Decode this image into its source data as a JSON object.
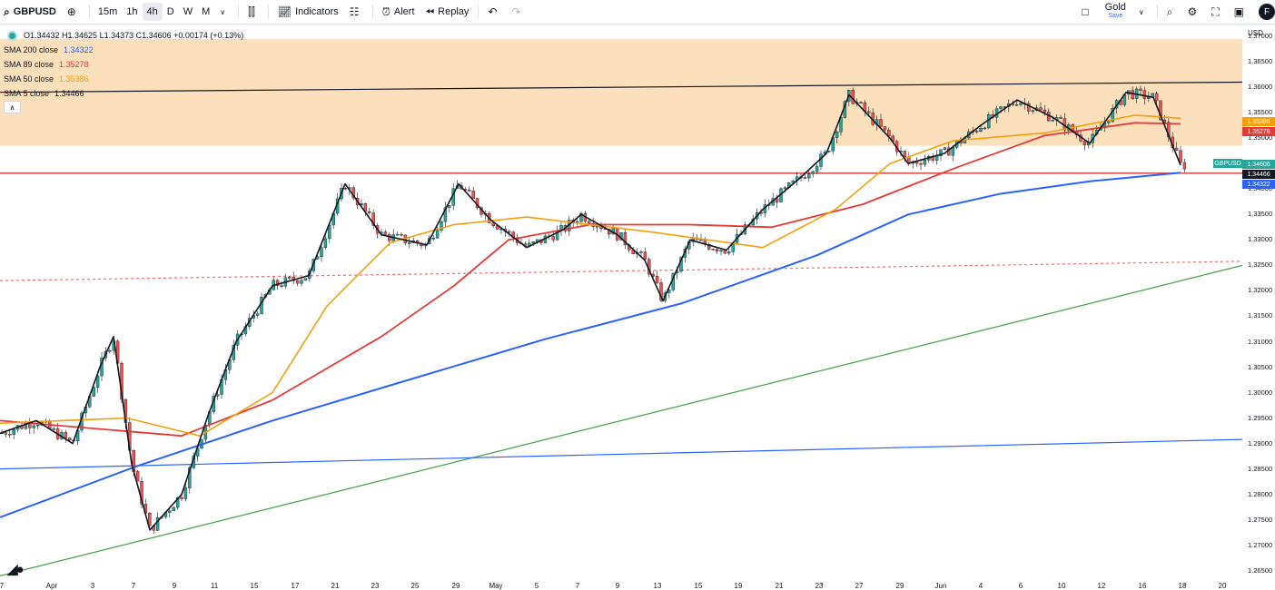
{
  "toolbar": {
    "symbol": "GBPUSD",
    "timeframes": [
      "15m",
      "1h",
      "4h",
      "D",
      "W",
      "M"
    ],
    "active_timeframe": "4h",
    "indicators_label": "Indicators",
    "alert_label": "Alert",
    "replay_label": "Replay",
    "layout_name": "Gold",
    "layout_status": "Save",
    "avatar_letter": "F"
  },
  "legend": {
    "ohlc": "O1.34432  H1.34625  L1.34373  C1.34606  +0.00174 (+0.13%)",
    "sma": [
      {
        "label": "SMA 200 close",
        "value": "1.34322",
        "color": "#2962ff"
      },
      {
        "label": "SMA 89 close",
        "value": "1.35278",
        "color": "#e53935"
      },
      {
        "label": "SMA 50 close",
        "value": "1.35386",
        "color": "#f59e0b"
      },
      {
        "label": "SMA 5 close",
        "value": "1.34466",
        "color": "#131722"
      }
    ]
  },
  "price_scale": {
    "currency": "USD",
    "ticks": [
      "1.37000",
      "1.36500",
      "1.36000",
      "1.35500",
      "1.35000",
      "1.34500",
      "1.34000",
      "1.33500",
      "1.33000",
      "1.32500",
      "1.32000",
      "1.31500",
      "1.31000",
      "1.30500",
      "1.30000",
      "1.29500",
      "1.29000",
      "1.28500",
      "1.28000",
      "1.27500",
      "1.27000",
      "1.26500"
    ],
    "labels": [
      {
        "text": "1.35386",
        "color": "#f59e0b"
      },
      {
        "text": "1.35278",
        "color": "#e53935"
      },
      {
        "text": "GBPUSD",
        "color": "#26a69a"
      },
      {
        "text": "1.34606",
        "color": "#26a69a"
      },
      {
        "text": "1.34466",
        "color": "#131722"
      },
      {
        "text": "1.34322",
        "color": "#2962ff"
      }
    ]
  },
  "time_axis": [
    "7",
    "Apr",
    "3",
    "7",
    "9",
    "11",
    "15",
    "17",
    "21",
    "23",
    "25",
    "29",
    "May",
    "5",
    "7",
    "9",
    "13",
    "15",
    "19",
    "21",
    "23",
    "27",
    "29",
    "Jun",
    "4",
    "6",
    "10",
    "12",
    "16",
    "18",
    "20"
  ],
  "chart_data": {
    "type": "candlestick",
    "symbol": "GBPUSD",
    "timeframe": "4h",
    "ylim": [
      1.263,
      1.3725
    ],
    "x_range_labels": [
      "Apr",
      "May",
      "Jun"
    ],
    "colors": {
      "up": "#26a69a",
      "down": "#ef5350",
      "sma200": "#2962ff",
      "sma89": "#e53935",
      "sma50": "#f59e0b",
      "sma5": "#131722",
      "zone": "#fbd5a6"
    },
    "sma200": [
      [
        0,
        1.2755
      ],
      [
        150,
        1.2855
      ],
      [
        300,
        1.2945
      ],
      [
        450,
        1.3025
      ],
      [
        600,
        1.3105
      ],
      [
        750,
        1.3175
      ],
      [
        900,
        1.327
      ],
      [
        1000,
        1.335
      ],
      [
        1100,
        1.339
      ],
      [
        1200,
        1.3415
      ],
      [
        1300,
        1.3432
      ]
    ],
    "sma89": [
      [
        0,
        1.2945
      ],
      [
        200,
        1.2915
      ],
      [
        300,
        1.2985
      ],
      [
        420,
        1.311
      ],
      [
        500,
        1.321
      ],
      [
        560,
        1.33
      ],
      [
        650,
        1.333
      ],
      [
        760,
        1.333
      ],
      [
        850,
        1.3325
      ],
      [
        950,
        1.337
      ],
      [
        1050,
        1.344
      ],
      [
        1150,
        1.3505
      ],
      [
        1250,
        1.353
      ],
      [
        1300,
        1.3528
      ]
    ],
    "sma50": [
      [
        0,
        1.294
      ],
      [
        140,
        1.295
      ],
      [
        220,
        1.2915
      ],
      [
        300,
        1.3
      ],
      [
        360,
        1.317
      ],
      [
        430,
        1.3295
      ],
      [
        500,
        1.333
      ],
      [
        580,
        1.3345
      ],
      [
        720,
        1.3315
      ],
      [
        840,
        1.3285
      ],
      [
        920,
        1.336
      ],
      [
        980,
        1.345
      ],
      [
        1050,
        1.3495
      ],
      [
        1150,
        1.351
      ],
      [
        1250,
        1.3545
      ],
      [
        1300,
        1.3539
      ]
    ],
    "close_series": [
      [
        0,
        1.292
      ],
      [
        40,
        1.2945
      ],
      [
        80,
        1.29
      ],
      [
        110,
        1.305
      ],
      [
        125,
        1.311
      ],
      [
        145,
        1.286
      ],
      [
        165,
        1.273
      ],
      [
        200,
        1.28
      ],
      [
        230,
        1.296
      ],
      [
        260,
        1.31
      ],
      [
        300,
        1.321
      ],
      [
        340,
        1.323
      ],
      [
        380,
        1.341
      ],
      [
        420,
        1.331
      ],
      [
        470,
        1.329
      ],
      [
        505,
        1.341
      ],
      [
        540,
        1.334
      ],
      [
        580,
        1.3285
      ],
      [
        620,
        1.332
      ],
      [
        640,
        1.335
      ],
      [
        680,
        1.331
      ],
      [
        710,
        1.326
      ],
      [
        730,
        1.318
      ],
      [
        760,
        1.33
      ],
      [
        800,
        1.328
      ],
      [
        840,
        1.336
      ],
      [
        880,
        1.342
      ],
      [
        910,
        1.347
      ],
      [
        935,
        1.3585
      ],
      [
        980,
        1.35
      ],
      [
        1000,
        1.345
      ],
      [
        1040,
        1.347
      ],
      [
        1080,
        1.3525
      ],
      [
        1120,
        1.3575
      ],
      [
        1160,
        1.354
      ],
      [
        1200,
        1.349
      ],
      [
        1240,
        1.359
      ],
      [
        1270,
        1.358
      ],
      [
        1300,
        1.3447
      ]
    ],
    "trendlines": [
      {
        "name": "resistance",
        "color": "#131722",
        "points": [
          [
            0,
            1.359
          ],
          [
            1368,
            1.361
          ]
        ]
      },
      {
        "name": "horizontal-support",
        "color": "#e53935",
        "points": [
          [
            0,
            1.3431
          ],
          [
            1368,
            1.3431
          ]
        ]
      },
      {
        "name": "dotted-red",
        "color": "#e57373",
        "points": [
          [
            0,
            1.322
          ],
          [
            1368,
            1.3258
          ]
        ]
      },
      {
        "name": "green-uptrend",
        "color": "#43a047",
        "points": [
          [
            0,
            1.264
          ],
          [
            1368,
            1.325
          ]
        ]
      },
      {
        "name": "blue-line",
        "color": "#2962ff",
        "points": [
          [
            0,
            1.285
          ],
          [
            1368,
            1.2908
          ]
        ]
      }
    ]
  }
}
